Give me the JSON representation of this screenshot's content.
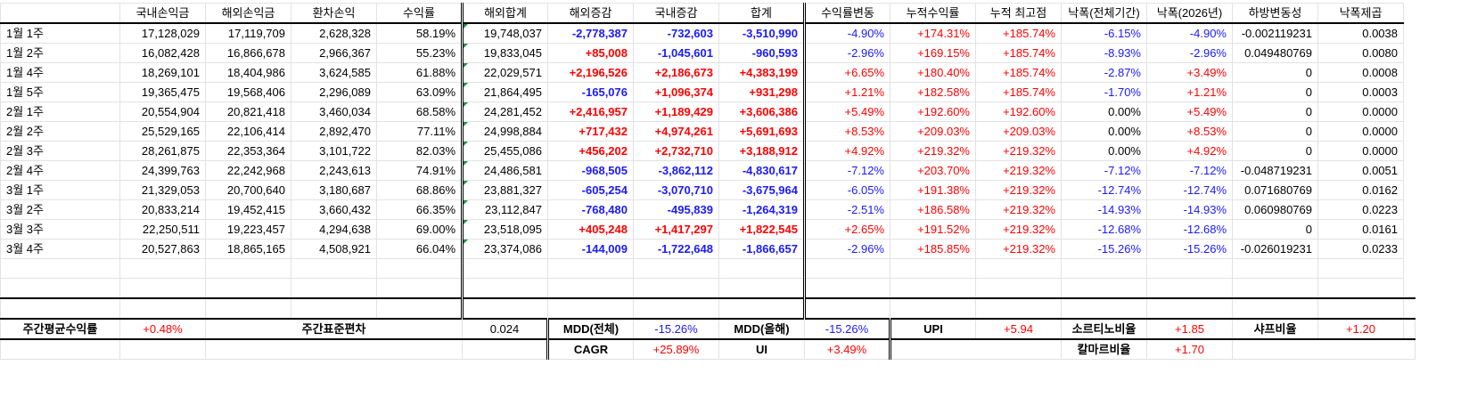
{
  "colors": {
    "positive": "#ff0000",
    "negative": "#1a1aff",
    "tick": "#1f8f3a"
  },
  "headers": [
    "",
    "국내손익금",
    "해외손익금",
    "환차손익",
    "수익률",
    "해외합계",
    "해외증감",
    "국내증감",
    "합계",
    "수익률변동",
    "누적수익률",
    "누적 최고점",
    "낙폭(전체기간)",
    "낙폭(2026년)",
    "하방변동성",
    "낙폭제곱"
  ],
  "rows": [
    {
      "c": [
        "1월 1주",
        "17,128,029",
        "17,119,709",
        "2,628,328",
        "58.19%",
        "19,748,037",
        "-2,778,387",
        "-732,603",
        "-3,510,990",
        "-4.90%",
        "+174.31%",
        "+185.74%",
        "-6.15%",
        "-4.90%",
        "-0.002119231",
        "0.0038"
      ]
    },
    {
      "c": [
        "1월 2주",
        "16,082,428",
        "16,866,678",
        "2,966,367",
        "55.23%",
        "19,833,045",
        "+85,008",
        "-1,045,601",
        "-960,593",
        "-2.96%",
        "+169.15%",
        "+185.74%",
        "-8.93%",
        "-2.96%",
        "0.049480769",
        "0.0080"
      ]
    },
    {
      "c": [
        "1월 4주",
        "18,269,101",
        "18,404,986",
        "3,624,585",
        "61.88%",
        "22,029,571",
        "+2,196,526",
        "+2,186,673",
        "+4,383,199",
        "+6.65%",
        "+180.40%",
        "+185.74%",
        "-2.87%",
        "+3.49%",
        "0",
        "0.0008"
      ]
    },
    {
      "c": [
        "1월 5주",
        "19,365,475",
        "19,568,406",
        "2,296,089",
        "63.09%",
        "21,864,495",
        "-165,076",
        "+1,096,374",
        "+931,298",
        "+1.21%",
        "+182.58%",
        "+185.74%",
        "-1.70%",
        "+1.21%",
        "0",
        "0.0003"
      ]
    },
    {
      "c": [
        "2월 1주",
        "20,554,904",
        "20,821,418",
        "3,460,034",
        "68.58%",
        "24,281,452",
        "+2,416,957",
        "+1,189,429",
        "+3,606,386",
        "+5.49%",
        "+192.60%",
        "+192.60%",
        "0.00%",
        "+5.49%",
        "0",
        "0.0000"
      ]
    },
    {
      "c": [
        "2월 2주",
        "25,529,165",
        "22,106,414",
        "2,892,470",
        "77.11%",
        "24,998,884",
        "+717,432",
        "+4,974,261",
        "+5,691,693",
        "+8.53%",
        "+209.03%",
        "+209.03%",
        "0.00%",
        "+8.53%",
        "0",
        "0.0000"
      ]
    },
    {
      "c": [
        "2월 3주",
        "28,261,875",
        "22,353,364",
        "3,101,722",
        "82.03%",
        "25,455,086",
        "+456,202",
        "+2,732,710",
        "+3,188,912",
        "+4.92%",
        "+219.32%",
        "+219.32%",
        "0.00%",
        "+4.92%",
        "0",
        "0.0000"
      ]
    },
    {
      "c": [
        "2월 4주",
        "24,399,763",
        "22,242,968",
        "2,243,613",
        "74.91%",
        "24,486,581",
        "-968,505",
        "-3,862,112",
        "-4,830,617",
        "-7.12%",
        "+203.70%",
        "+219.32%",
        "-7.12%",
        "-7.12%",
        "-0.048719231",
        "0.0051"
      ]
    },
    {
      "c": [
        "3월 1주",
        "21,329,053",
        "20,700,640",
        "3,180,687",
        "68.86%",
        "23,881,327",
        "-605,254",
        "-3,070,710",
        "-3,675,964",
        "-6.05%",
        "+191.38%",
        "+219.32%",
        "-12.74%",
        "-12.74%",
        "0.071680769",
        "0.0162"
      ]
    },
    {
      "c": [
        "3월 2주",
        "20,833,214",
        "19,452,415",
        "3,660,432",
        "66.35%",
        "23,112,847",
        "-768,480",
        "-495,839",
        "-1,264,319",
        "-2.51%",
        "+186.58%",
        "+219.32%",
        "-14.93%",
        "-14.93%",
        "0.060980769",
        "0.0223"
      ]
    },
    {
      "c": [
        "3월 3주",
        "22,250,511",
        "19,223,457",
        "4,294,638",
        "69.00%",
        "23,518,095",
        "+405,248",
        "+1,417,297",
        "+1,822,545",
        "+2.65%",
        "+191.52%",
        "+219.32%",
        "-12.68%",
        "-12.68%",
        "0",
        "0.0161"
      ]
    },
    {
      "c": [
        "3월 4주",
        "20,527,863",
        "18,865,165",
        "4,508,921",
        "66.04%",
        "23,374,086",
        "-144,009",
        "-1,722,648",
        "-1,866,657",
        "-2.96%",
        "+185.85%",
        "+219.32%",
        "-15.26%",
        "-15.26%",
        "-0.026019231",
        "0.0233"
      ]
    }
  ],
  "summary": {
    "weekly_avg_label": "주간평균수익률",
    "weekly_avg": "+0.48%",
    "weekly_std_label": "주간표준편차",
    "weekly_std": "0.024",
    "mdd_all_label": "MDD(전체)",
    "mdd_all": "-15.26%",
    "mdd_year_label": "MDD(올해)",
    "mdd_year": "-15.26%",
    "upi_label": "UPI",
    "upi": "+5.94",
    "sortino_label": "소르티노비율",
    "sortino": "+1.85",
    "sharpe_label": "샤프비율",
    "sharpe": "+1.20",
    "cagr_label": "CAGR",
    "cagr": "+25.89%",
    "ui_label": "UI",
    "ui": "+3.49%",
    "calmar_label": "칼마르비율",
    "calmar": "+1.70"
  }
}
